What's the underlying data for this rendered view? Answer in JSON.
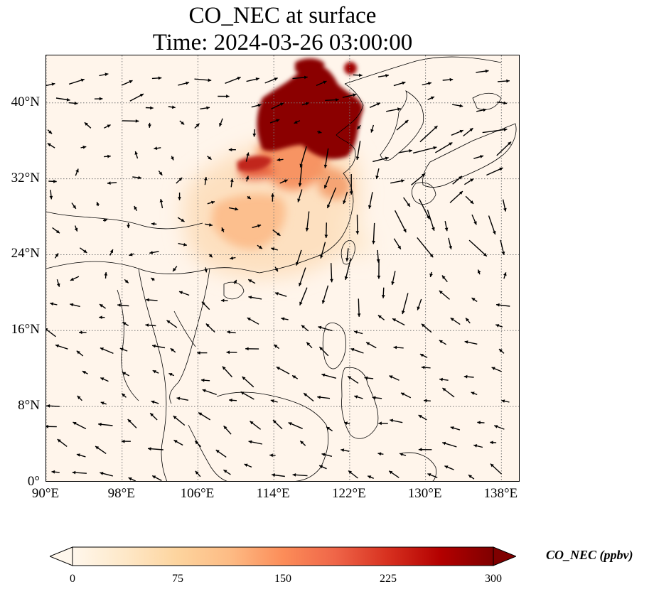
{
  "title": {
    "line1": "CO_NEC at surface",
    "line2": "Time: 2024-03-26 03:00:00"
  },
  "map": {
    "extent": {
      "lon": [
        90,
        140
      ],
      "lat": [
        0,
        45
      ]
    },
    "gridlines": "dotted",
    "lat_ticks": [
      {
        "value": 40,
        "label": "40°N"
      },
      {
        "value": 32,
        "label": "32°N"
      },
      {
        "value": 24,
        "label": "24°N"
      },
      {
        "value": 16,
        "label": "16°N"
      },
      {
        "value": 8,
        "label": "8°N"
      },
      {
        "value": 0,
        "label": "0°"
      }
    ],
    "lon_ticks": [
      {
        "value": 90,
        "label": "90°E"
      },
      {
        "value": 98,
        "label": "98°E"
      },
      {
        "value": 106,
        "label": "106°E"
      },
      {
        "value": 114,
        "label": "114°E"
      },
      {
        "value": 122,
        "label": "122°E"
      },
      {
        "value": 130,
        "label": "130°E"
      },
      {
        "value": 138,
        "label": "138°E"
      }
    ],
    "background_color": "#fff5eb",
    "plume": "CO_NEC concentration plume over northeast China, Bohai region and eastern China; values exceed 300 ppbv near Beijing–Tianjin–Hebei and the Shandong peninsula; moderate values (75–150 ppbv) over central/south-eastern China",
    "wind_vectors": "black quiver arrows showing surface wind direction and speed"
  },
  "colorbar": {
    "label": "CO_NEC (ppbv)",
    "colormap": "OrRd",
    "extend": "both",
    "range": [
      0,
      300
    ],
    "ticks": [
      "0",
      "75",
      "150",
      "225",
      "300"
    ],
    "colors": [
      "#fff7ec",
      "#fee8c8",
      "#fdd49e",
      "#fdbb84",
      "#fc8d59",
      "#ef6548",
      "#d7301f",
      "#b30000",
      "#7f0000"
    ]
  }
}
